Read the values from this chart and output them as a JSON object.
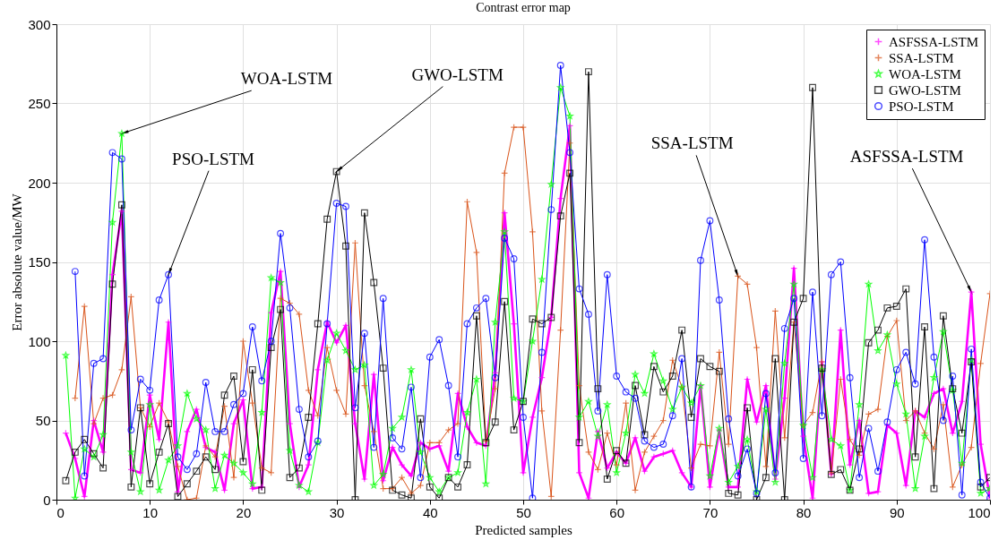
{
  "chart_data": {
    "type": "line",
    "title": "Contrast error map",
    "xlabel": "Predicted samples",
    "ylabel": "Error absolute value/MW",
    "x": [
      1,
      2,
      3,
      4,
      5,
      6,
      7,
      8,
      9,
      10,
      11,
      12,
      13,
      14,
      15,
      16,
      17,
      18,
      19,
      20,
      21,
      22,
      23,
      24,
      25,
      26,
      27,
      28,
      29,
      30,
      31,
      32,
      33,
      34,
      35,
      36,
      37,
      38,
      39,
      40,
      41,
      42,
      43,
      44,
      45,
      46,
      47,
      48,
      49,
      50,
      51,
      52,
      53,
      54,
      55,
      56,
      57,
      58,
      59,
      60,
      61,
      62,
      63,
      64,
      65,
      66,
      67,
      68,
      69,
      70,
      71,
      72,
      73,
      74,
      75,
      76,
      77,
      78,
      79,
      80,
      81,
      82,
      83,
      84,
      85,
      86,
      87,
      88,
      89,
      90,
      91,
      92,
      93,
      94,
      95,
      96,
      97,
      98,
      99,
      100
    ],
    "series": [
      {
        "name": "ASFSSA-LSTM",
        "color": "#ff00ff",
        "marker": "cross",
        "values": [
          42,
          26,
          2,
          50,
          30,
          142,
          182,
          19,
          17,
          66,
          38,
          112,
          5,
          43,
          57,
          33,
          30,
          6,
          48,
          63,
          7,
          8,
          118,
          144,
          48,
          8,
          22,
          82,
          112,
          99,
          110,
          48,
          13,
          79,
          12,
          33,
          22,
          15,
          36,
          32,
          34,
          18,
          67,
          46,
          36,
          34,
          80,
          181,
          111,
          17,
          52,
          77,
          115,
          190,
          236,
          17,
          1,
          43,
          20,
          30,
          23,
          39,
          18,
          27,
          29,
          31,
          17,
          8,
          72,
          8,
          44,
          8,
          8,
          76,
          49,
          72,
          13,
          64,
          146,
          40,
          1,
          87,
          16,
          107,
          22,
          50,
          4,
          5,
          47,
          42,
          9,
          56,
          52,
          67,
          70,
          42,
          62,
          131,
          35,
          1
        ]
      },
      {
        "name": "SSA-LSTM",
        "color": "#d95319",
        "marker": "cross",
        "values": [
          null,
          64,
          122,
          48,
          64,
          66,
          82,
          128,
          58,
          46,
          61,
          49,
          21,
          0,
          1,
          34,
          27,
          59,
          14,
          100,
          61,
          20,
          17,
          127,
          124,
          117,
          69,
          53,
          96,
          69,
          54,
          162,
          72,
          43,
          7,
          7,
          14,
          4,
          9,
          36,
          36,
          44,
          48,
          188,
          156,
          37,
          70,
          206,
          235,
          235,
          169,
          56,
          2,
          107,
          225,
          72,
          30,
          19,
          42,
          22,
          61,
          6,
          30,
          40,
          50,
          88,
          71,
          20,
          35,
          34,
          93,
          35,
          141,
          136,
          96,
          21,
          119,
          39,
          112,
          47,
          55,
          87,
          17,
          76,
          38,
          28,
          54,
          57,
          103,
          113,
          50,
          56,
          42,
          32,
          60,
          8,
          22,
          33,
          86,
          130
        ]
      },
      {
        "name": "WOA-LSTM",
        "color": "#00ff00",
        "marker": "star",
        "values": [
          91,
          1,
          32,
          27,
          41,
          175,
          231,
          30,
          5,
          60,
          6,
          25,
          34,
          67,
          51,
          44,
          7,
          28,
          23,
          17,
          10,
          55,
          140,
          137,
          31,
          9,
          5,
          36,
          88,
          105,
          94,
          82,
          85,
          9,
          16,
          45,
          52,
          82,
          30,
          14,
          5,
          14,
          17,
          55,
          76,
          10,
          112,
          169,
          64,
          62,
          100,
          139,
          199,
          260,
          242,
          52,
          62,
          40,
          60,
          17,
          42,
          79,
          67,
          92,
          75,
          57,
          71,
          61,
          72,
          15,
          45,
          11,
          21,
          38,
          5,
          57,
          11,
          86,
          136,
          47,
          14,
          82,
          38,
          34,
          6,
          60,
          136,
          94,
          104,
          73,
          54,
          7,
          40,
          77,
          106,
          69,
          23,
          88,
          4,
          7
        ]
      },
      {
        "name": "GWO-LSTM",
        "color": "#000000",
        "marker": "square",
        "values": [
          12,
          30,
          38,
          29,
          20,
          136,
          186,
          8,
          58,
          10,
          30,
          48,
          2,
          10,
          18,
          27,
          19,
          66,
          78,
          24,
          82,
          6,
          96,
          120,
          14,
          20,
          52,
          111,
          177,
          207,
          160,
          0,
          181,
          137,
          83,
          6,
          3,
          1,
          51,
          8,
          1,
          14,
          8,
          22,
          116,
          36,
          49,
          125,
          44,
          62,
          114,
          111,
          115,
          179,
          206,
          36,
          270,
          70,
          13,
          31,
          23,
          72,
          41,
          84,
          68,
          78,
          107,
          52,
          89,
          84,
          81,
          4,
          3,
          58,
          0,
          14,
          89,
          0,
          112,
          127,
          260,
          83,
          16,
          19,
          6,
          32,
          99,
          107,
          121,
          122,
          133,
          27,
          109,
          7,
          116,
          70,
          42,
          87,
          8,
          14
        ]
      },
      {
        "name": "PSO-LSTM",
        "color": "#0000ff",
        "marker": "circle",
        "values": [
          null,
          144,
          15,
          86,
          89,
          219,
          215,
          44,
          76,
          69,
          126,
          142,
          27,
          19,
          29,
          74,
          43,
          43,
          60,
          67,
          109,
          75,
          100,
          168,
          121,
          57,
          27,
          37,
          111,
          187,
          185,
          58,
          105,
          33,
          127,
          39,
          32,
          71,
          14,
          90,
          101,
          72,
          27,
          111,
          121,
          127,
          77,
          165,
          152,
          52,
          1,
          93,
          183,
          274,
          219,
          133,
          117,
          56,
          142,
          78,
          68,
          64,
          37,
          33,
          35,
          53,
          89,
          8,
          151,
          176,
          126,
          51,
          15,
          32,
          4,
          67,
          17,
          108,
          127,
          26,
          131,
          53,
          142,
          150,
          77,
          14,
          45,
          18,
          49,
          82,
          93,
          73,
          164,
          90,
          50,
          78,
          3,
          95,
          11,
          1
        ]
      }
    ],
    "xlim": [
      0,
      100
    ],
    "xticks": [
      0,
      10,
      20,
      30,
      40,
      50,
      60,
      70,
      80,
      90,
      100
    ],
    "ylim": [
      0,
      300
    ],
    "yticks": [
      0,
      50,
      100,
      150,
      200,
      250,
      300
    ],
    "grid": true,
    "legend": "top right",
    "annotations": [
      {
        "text": "WOA-LSTM",
        "x": 7,
        "y": 231
      },
      {
        "text": "PSO-LSTM",
        "x": 12,
        "y": 142
      },
      {
        "text": "GWO-LSTM",
        "x": 30,
        "y": 207
      },
      {
        "text": "SSA-LSTM",
        "x": 73,
        "y": 141
      },
      {
        "text": "ASFSSA-LSTM",
        "x": 98,
        "y": 131
      }
    ]
  }
}
